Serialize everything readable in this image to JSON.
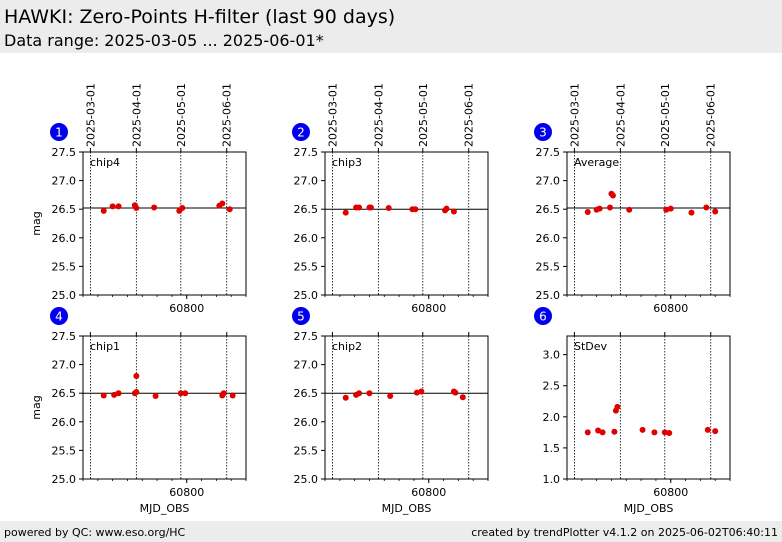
{
  "header": {
    "title": "HAWKI: Zero-Points H-filter (last 90 days)",
    "subtitle": "Data range: 2025-03-05 ... 2025-06-01*"
  },
  "footer": {
    "left": "powered by QC: www.eso.org/HC",
    "right": "created by trendPlotter v4.1.2 on 2025-06-02T06:40:11"
  },
  "colors": {
    "marker": "#e00000",
    "badge": "#0000ee",
    "header_bg": "#ececec"
  },
  "date_ticks": [
    {
      "label": "2025-03-01",
      "mjd": 60735
    },
    {
      "label": "2025-04-01",
      "mjd": 60766
    },
    {
      "label": "2025-05-01",
      "mjd": 60796
    },
    {
      "label": "2025-06-01",
      "mjd": 60827
    }
  ],
  "chart_data": [
    {
      "type": "scatter",
      "panel": "1",
      "name": "chip4",
      "xlabel": "",
      "ylabel": "mag",
      "xlim": [
        60730,
        60840
      ],
      "xticks": [
        60800
      ],
      "ylim": [
        25.0,
        27.5
      ],
      "yticks": [
        25.0,
        25.5,
        26.0,
        26.5,
        27.0,
        27.5
      ],
      "reference_line": 26.52,
      "x": [
        60744,
        60750,
        60754,
        60765,
        60766,
        60778,
        60795,
        60797,
        60822,
        60824,
        60829
      ],
      "y": [
        26.47,
        26.55,
        26.55,
        26.57,
        26.52,
        26.53,
        26.47,
        26.52,
        26.56,
        26.6,
        26.5
      ]
    },
    {
      "type": "scatter",
      "panel": "2",
      "name": "chip3",
      "xlabel": "",
      "ylabel": "",
      "xlim": [
        60730,
        60840
      ],
      "xticks": [
        60800
      ],
      "ylim": [
        25.0,
        27.5
      ],
      "yticks": [
        25.0,
        25.5,
        26.0,
        26.5,
        27.0,
        27.5
      ],
      "reference_line": 26.5,
      "x": [
        60744,
        60751,
        60753,
        60760,
        60761,
        60773,
        60789,
        60791,
        60811,
        60812,
        60817
      ],
      "y": [
        26.44,
        26.53,
        26.53,
        26.53,
        26.53,
        26.52,
        26.5,
        26.5,
        26.48,
        26.51,
        26.46
      ]
    },
    {
      "type": "scatter",
      "panel": "3",
      "name": "Average",
      "xlabel": "",
      "ylabel": "",
      "xlim": [
        60730,
        60840
      ],
      "xticks": [
        60800
      ],
      "ylim": [
        25.0,
        27.5
      ],
      "yticks": [
        25.0,
        25.5,
        26.0,
        26.5,
        27.0,
        27.5
      ],
      "reference_line": 26.52,
      "x": [
        60744,
        60750,
        60752,
        60759,
        60760,
        60761,
        60772,
        60797,
        60800,
        60814,
        60824,
        60830
      ],
      "y": [
        26.45,
        26.49,
        26.51,
        26.53,
        26.77,
        26.74,
        26.49,
        26.49,
        26.51,
        26.44,
        26.53,
        26.46
      ]
    },
    {
      "type": "scatter",
      "panel": "4",
      "name": "chip1",
      "xlabel": "MJD_OBS",
      "ylabel": "mag",
      "xlim": [
        60730,
        60840
      ],
      "xticks": [
        60800
      ],
      "ylim": [
        25.0,
        27.5
      ],
      "yticks": [
        25.0,
        25.5,
        26.0,
        26.5,
        27.0,
        27.5
      ],
      "reference_line": 26.5,
      "x": [
        60744,
        60751,
        60754,
        60765,
        60766,
        60766,
        60779,
        60796,
        60799,
        60824,
        60825,
        60831
      ],
      "y": [
        26.46,
        26.47,
        26.5,
        26.5,
        26.52,
        26.8,
        26.45,
        26.5,
        26.5,
        26.46,
        26.5,
        26.46
      ]
    },
    {
      "type": "scatter",
      "panel": "5",
      "name": "chip2",
      "xlabel": "MJD_OBS",
      "ylabel": "",
      "xlim": [
        60730,
        60840
      ],
      "xticks": [
        60800
      ],
      "ylim": [
        25.0,
        27.5
      ],
      "yticks": [
        25.0,
        25.5,
        26.0,
        26.5,
        27.0,
        27.5
      ],
      "reference_line": 26.5,
      "x": [
        60744,
        60751,
        60753,
        60760,
        60774,
        60792,
        60795,
        60817,
        60818,
        60823
      ],
      "y": [
        26.42,
        26.47,
        26.5,
        26.5,
        26.45,
        26.51,
        26.53,
        26.53,
        26.51,
        26.43
      ]
    },
    {
      "type": "scatter",
      "panel": "6",
      "name": "StDev",
      "xlabel": "MJD_OBS",
      "ylabel": "",
      "xlim": [
        60730,
        60840
      ],
      "xticks": [
        60800
      ],
      "ylim": [
        1.0,
        3.3
      ],
      "yticks": [
        1.0,
        1.5,
        2.0,
        2.5,
        3.0
      ],
      "reference_line": null,
      "x": [
        60744,
        60751,
        60754,
        60762,
        60763,
        60764,
        60781,
        60789,
        60796,
        60799,
        60825,
        60830
      ],
      "y": [
        1.75,
        1.78,
        1.75,
        1.76,
        2.1,
        2.16,
        1.79,
        1.75,
        1.75,
        1.74,
        1.79,
        1.77
      ]
    }
  ]
}
